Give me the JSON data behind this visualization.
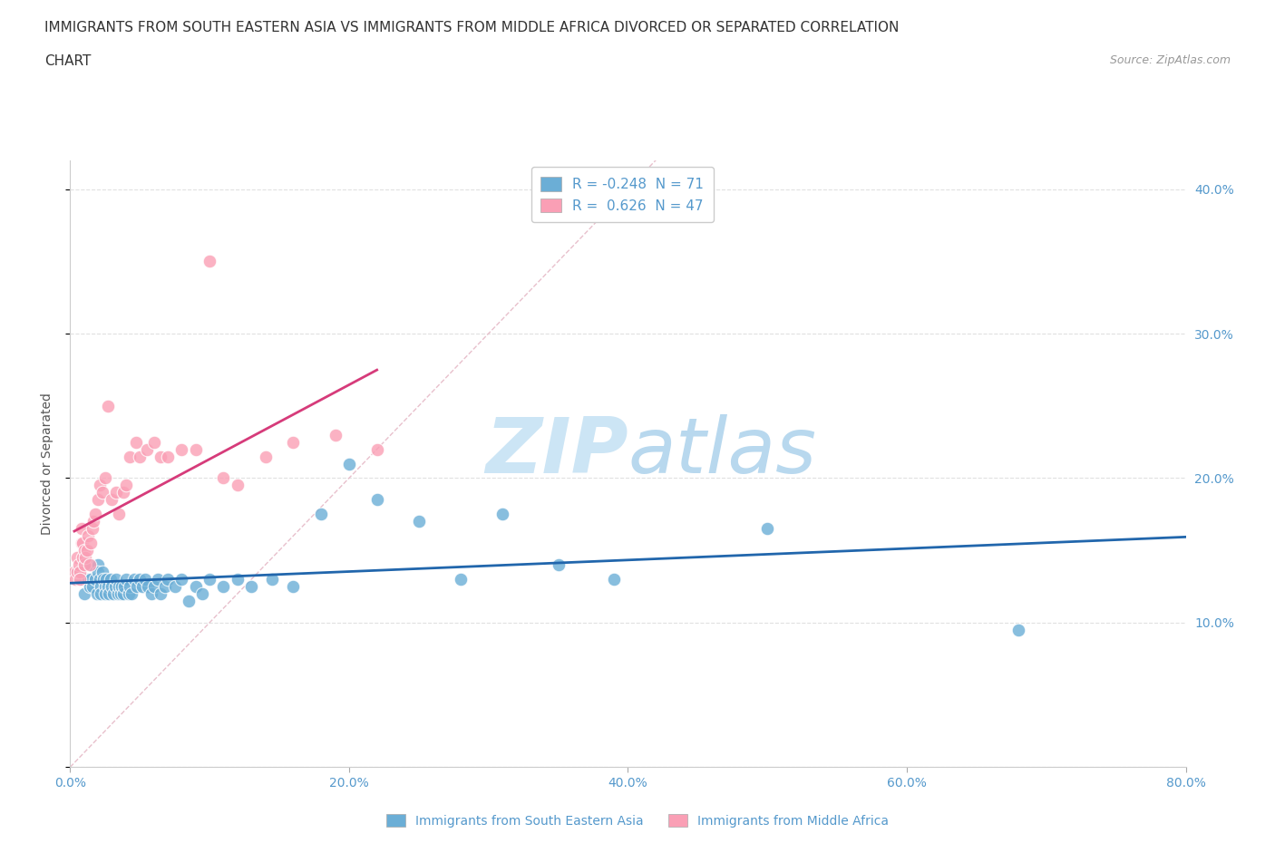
{
  "title_line1": "IMMIGRANTS FROM SOUTH EASTERN ASIA VS IMMIGRANTS FROM MIDDLE AFRICA DIVORCED OR SEPARATED CORRELATION",
  "title_line2": "CHART",
  "source_text": "Source: ZipAtlas.com",
  "ylabel": "Divorced or Separated",
  "legend_label_blue": "Immigrants from South Eastern Asia",
  "legend_label_pink": "Immigrants from Middle Africa",
  "R_blue": -0.248,
  "N_blue": 71,
  "R_pink": 0.626,
  "N_pink": 47,
  "xlim": [
    0.0,
    0.8
  ],
  "ylim": [
    0.0,
    0.42
  ],
  "xticks": [
    0.0,
    0.2,
    0.4,
    0.6,
    0.8
  ],
  "yticks": [
    0.0,
    0.1,
    0.2,
    0.3,
    0.4
  ],
  "ytick_labels_right": [
    "",
    "10.0%",
    "20.0%",
    "30.0%",
    "40.0%"
  ],
  "xtick_labels": [
    "0.0%",
    "20.0%",
    "40.0%",
    "60.0%",
    "80.0%"
  ],
  "color_blue": "#6baed6",
  "color_pink": "#fa9fb5",
  "line_color_blue": "#2166ac",
  "line_color_pink": "#d63b7a",
  "line_color_diagonal": "#cccccc",
  "background_color": "#ffffff",
  "grid_color": "#e0e0e0",
  "watermark_color": "#cce5f5",
  "title_fontsize": 11,
  "tick_fontsize": 10,
  "blue_scatter_x": [
    0.005,
    0.008,
    0.01,
    0.01,
    0.012,
    0.014,
    0.015,
    0.015,
    0.016,
    0.018,
    0.019,
    0.02,
    0.02,
    0.021,
    0.022,
    0.022,
    0.023,
    0.024,
    0.025,
    0.025,
    0.026,
    0.027,
    0.028,
    0.029,
    0.03,
    0.031,
    0.032,
    0.033,
    0.034,
    0.035,
    0.036,
    0.037,
    0.038,
    0.039,
    0.04,
    0.042,
    0.043,
    0.044,
    0.046,
    0.048,
    0.05,
    0.052,
    0.054,
    0.056,
    0.058,
    0.06,
    0.063,
    0.065,
    0.068,
    0.07,
    0.075,
    0.08,
    0.085,
    0.09,
    0.095,
    0.1,
    0.11,
    0.12,
    0.13,
    0.145,
    0.16,
    0.18,
    0.2,
    0.22,
    0.25,
    0.28,
    0.31,
    0.35,
    0.39,
    0.5,
    0.68
  ],
  "blue_scatter_y": [
    0.135,
    0.13,
    0.14,
    0.12,
    0.13,
    0.125,
    0.14,
    0.13,
    0.125,
    0.13,
    0.12,
    0.14,
    0.135,
    0.13,
    0.125,
    0.12,
    0.135,
    0.13,
    0.125,
    0.12,
    0.13,
    0.125,
    0.12,
    0.13,
    0.125,
    0.12,
    0.125,
    0.13,
    0.12,
    0.125,
    0.12,
    0.125,
    0.12,
    0.125,
    0.13,
    0.12,
    0.125,
    0.12,
    0.13,
    0.125,
    0.13,
    0.125,
    0.13,
    0.125,
    0.12,
    0.125,
    0.13,
    0.12,
    0.125,
    0.13,
    0.125,
    0.13,
    0.115,
    0.125,
    0.12,
    0.13,
    0.125,
    0.13,
    0.125,
    0.13,
    0.125,
    0.175,
    0.21,
    0.185,
    0.17,
    0.13,
    0.175,
    0.14,
    0.13,
    0.165,
    0.095
  ],
  "pink_scatter_x": [
    0.003,
    0.004,
    0.005,
    0.005,
    0.006,
    0.007,
    0.007,
    0.008,
    0.008,
    0.009,
    0.009,
    0.01,
    0.01,
    0.011,
    0.012,
    0.013,
    0.014,
    0.015,
    0.016,
    0.017,
    0.018,
    0.02,
    0.021,
    0.023,
    0.025,
    0.027,
    0.03,
    0.033,
    0.035,
    0.038,
    0.04,
    0.043,
    0.047,
    0.05,
    0.055,
    0.06,
    0.065,
    0.07,
    0.08,
    0.09,
    0.1,
    0.11,
    0.12,
    0.14,
    0.16,
    0.19,
    0.22
  ],
  "pink_scatter_y": [
    0.135,
    0.13,
    0.145,
    0.135,
    0.14,
    0.135,
    0.13,
    0.165,
    0.155,
    0.155,
    0.145,
    0.15,
    0.14,
    0.145,
    0.15,
    0.16,
    0.14,
    0.155,
    0.165,
    0.17,
    0.175,
    0.185,
    0.195,
    0.19,
    0.2,
    0.25,
    0.185,
    0.19,
    0.175,
    0.19,
    0.195,
    0.215,
    0.225,
    0.215,
    0.22,
    0.225,
    0.215,
    0.215,
    0.22,
    0.22,
    0.35,
    0.2,
    0.195,
    0.215,
    0.225,
    0.23,
    0.22
  ]
}
